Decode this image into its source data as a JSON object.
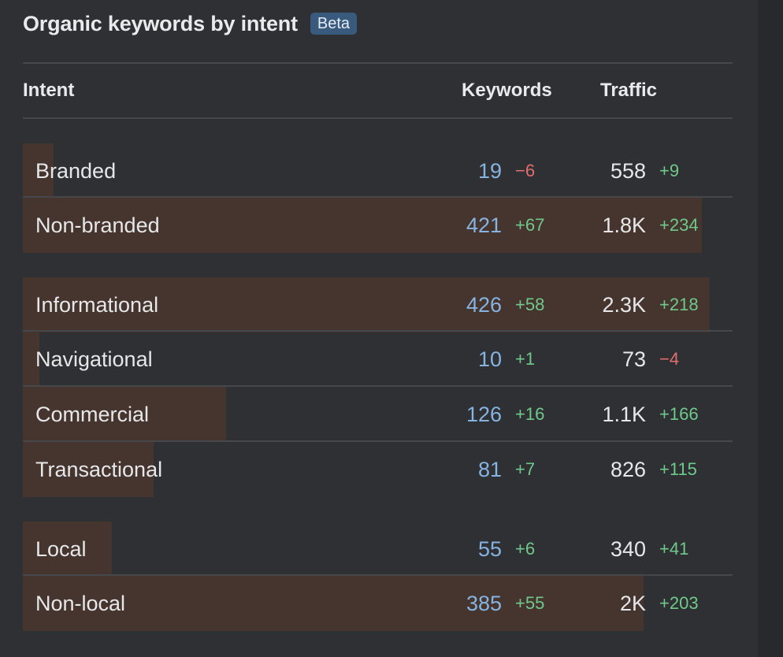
{
  "widget": {
    "title": "Organic keywords by intent",
    "badge": "Beta"
  },
  "columns": {
    "intent": "Intent",
    "keywords": "Keywords",
    "traffic": "Traffic"
  },
  "rows": [
    {
      "label": "Branded",
      "keywords": "19",
      "kw_delta": "−6",
      "kw_delta_sign": "neg",
      "traffic": "558",
      "tr_delta": "+9",
      "tr_delta_sign": "pos",
      "share": 0.043
    },
    {
      "label": "Non-branded",
      "keywords": "421",
      "kw_delta": "+67",
      "kw_delta_sign": "pos",
      "traffic": "1.8K",
      "tr_delta": "+234",
      "tr_delta_sign": "pos",
      "share": 0.957
    },
    {
      "label": "Informational",
      "keywords": "426",
      "kw_delta": "+58",
      "kw_delta_sign": "pos",
      "traffic": "2.3K",
      "tr_delta": "+218",
      "tr_delta_sign": "pos",
      "share": 0.968
    },
    {
      "label": "Navigational",
      "keywords": "10",
      "kw_delta": "+1",
      "kw_delta_sign": "pos",
      "traffic": "73",
      "tr_delta": "−4",
      "tr_delta_sign": "neg",
      "share": 0.023
    },
    {
      "label": "Commercial",
      "keywords": "126",
      "kw_delta": "+16",
      "kw_delta_sign": "pos",
      "traffic": "1.1K",
      "tr_delta": "+166",
      "tr_delta_sign": "pos",
      "share": 0.286
    },
    {
      "label": "Transactional",
      "keywords": "81",
      "kw_delta": "+7",
      "kw_delta_sign": "pos",
      "traffic": "826",
      "tr_delta": "+115",
      "tr_delta_sign": "pos",
      "share": 0.184
    },
    {
      "label": "Local",
      "keywords": "55",
      "kw_delta": "+6",
      "kw_delta_sign": "pos",
      "traffic": "340",
      "tr_delta": "+41",
      "tr_delta_sign": "pos",
      "share": 0.125
    },
    {
      "label": "Non-local",
      "keywords": "385",
      "kw_delta": "+55",
      "kw_delta_sign": "pos",
      "traffic": "2K",
      "tr_delta": "+203",
      "tr_delta_sign": "pos",
      "share": 0.875
    }
  ],
  "colors": {
    "background": "#2e3033",
    "bar": "#46352f",
    "keywords_value": "#86b3e0",
    "positive": "#6fc98a",
    "negative": "#e36e6e",
    "badge": "#3a5a7d"
  }
}
